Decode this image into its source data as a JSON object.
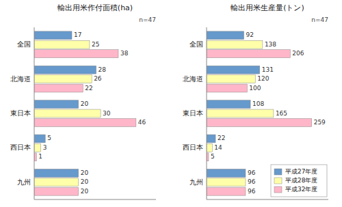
{
  "chart_data": [
    {
      "type": "bar",
      "orientation": "horizontal",
      "title": "輸出用米作付面積(ha)",
      "annotations": [
        "n=47"
      ],
      "categories": [
        "全国",
        "北海道",
        "東日本",
        "西日本",
        "九州"
      ],
      "series": [
        {
          "name": "平成27年度",
          "color": "#6699CC",
          "values": [
            17,
            28,
            20,
            5,
            20
          ]
        },
        {
          "name": "平成28年度",
          "color": "#FFFFAA",
          "values": [
            25,
            26,
            30,
            3,
            20
          ]
        },
        {
          "name": "平成32年度",
          "color": "#FFB6C8",
          "values": [
            38,
            22,
            46,
            1,
            20
          ]
        }
      ],
      "xlim": [
        0,
        55
      ],
      "data_labels": true,
      "tick_labels": "y",
      "grid": false
    },
    {
      "type": "bar",
      "orientation": "horizontal",
      "title": "輸出用米生産量(トン)",
      "annotations": [
        "n=47"
      ],
      "categories": [
        "全国",
        "北海道",
        "東日本",
        "西日本",
        "九州"
      ],
      "series": [
        {
          "name": "平成27年度",
          "color": "#6699CC",
          "values": [
            92,
            131,
            108,
            22,
            96
          ]
        },
        {
          "name": "平成28年度",
          "color": "#FFFFAA",
          "values": [
            138,
            120,
            165,
            14,
            96
          ]
        },
        {
          "name": "平成32年度",
          "color": "#FFB6C8",
          "values": [
            206,
            100,
            259,
            5,
            96
          ]
        }
      ],
      "xlim": [
        0,
        300
      ],
      "data_labels": true,
      "tick_labels": "y",
      "grid": false,
      "legend": "lower right"
    }
  ]
}
